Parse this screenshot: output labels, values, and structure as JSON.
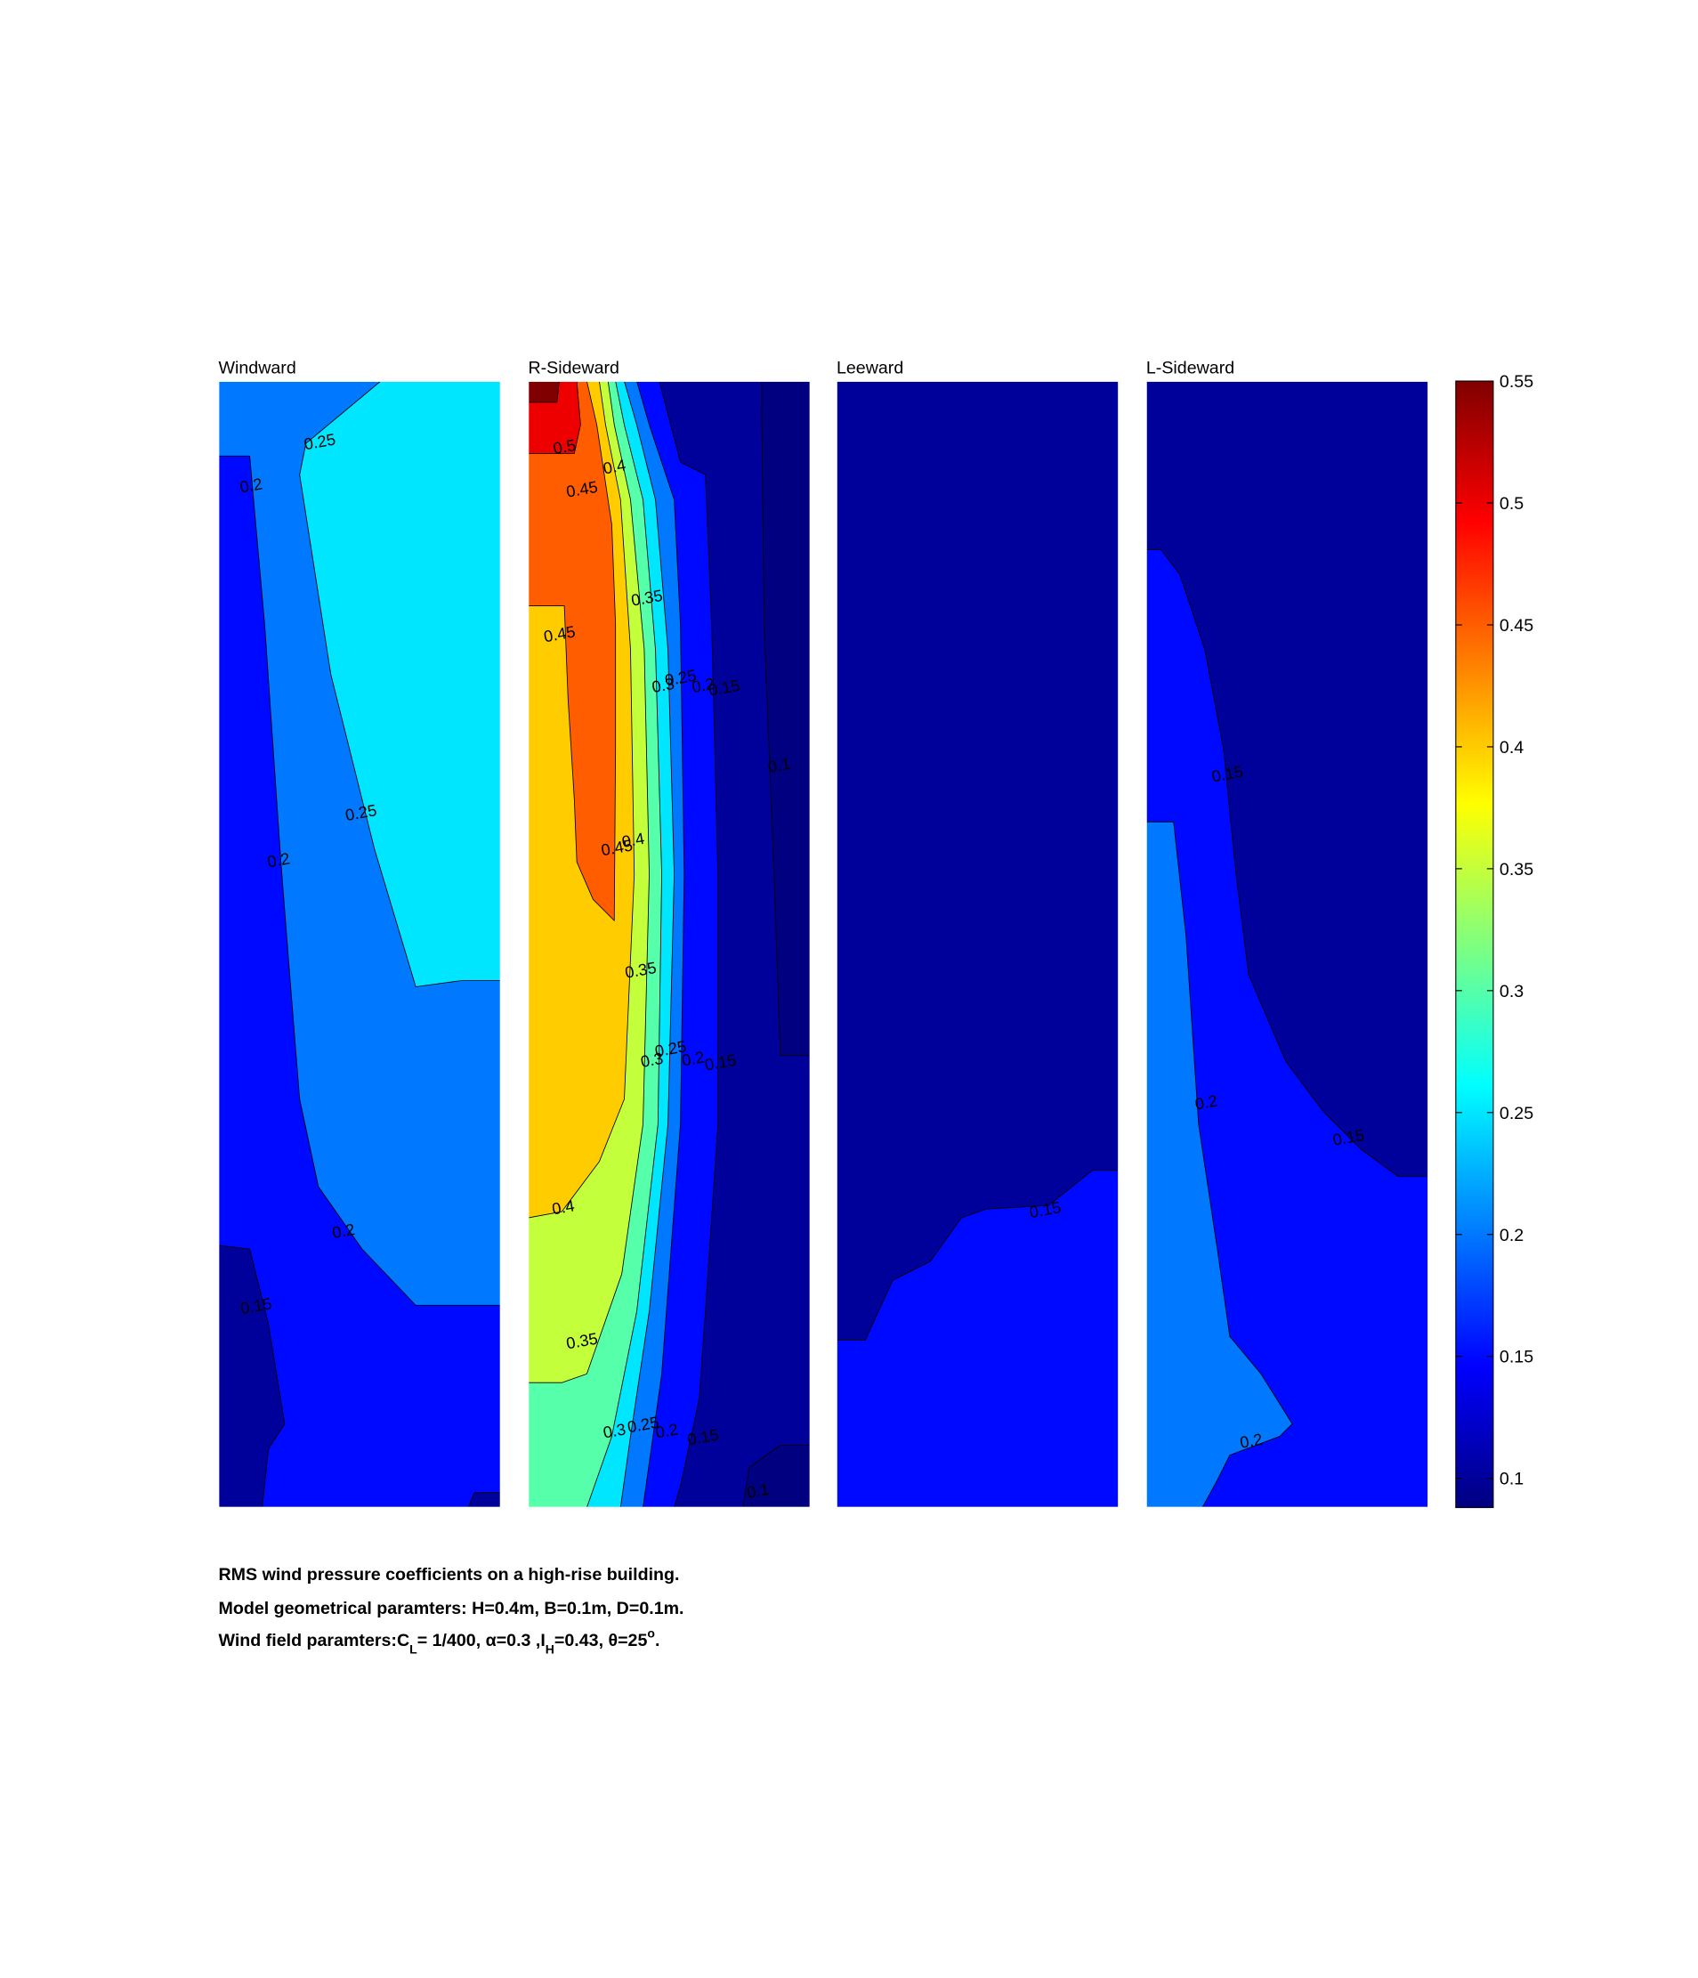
{
  "chart_data": [
    {
      "type": "contour",
      "title": "Windward",
      "levels": [
        0.15,
        0.2,
        0.25,
        0.1,
        0.1
      ],
      "contour_labels": [
        0.25,
        0.2,
        0.25,
        0.2,
        0.2,
        0.15
      ]
    },
    {
      "type": "contour",
      "title": "R-Sideward",
      "levels": [
        0.1,
        0.15,
        0.2,
        0.25,
        0.3,
        0.35,
        0.4,
        0.45,
        0.5,
        0.55
      ],
      "contour_labels": [
        0.5,
        0.4,
        0.45,
        0.35,
        0.45,
        0.3,
        0.25,
        0.2,
        0.15,
        0.1,
        0.45,
        0.4,
        0.35,
        0.3,
        0.25,
        0.2,
        0.15,
        0.4,
        0.35,
        0.3,
        0.25,
        0.2,
        0.15,
        0.1
      ]
    },
    {
      "type": "contour",
      "title": "Leeward",
      "levels": [
        0.1,
        0.15
      ],
      "contour_labels": [
        0.15
      ]
    },
    {
      "type": "contour",
      "title": "L-Sideward",
      "levels": [
        0.1,
        0.15,
        0.2
      ],
      "contour_labels": [
        0.15,
        0.2,
        0.15,
        0.2
      ]
    },
    {
      "type": "colorbar",
      "colormap": "jet",
      "ylim": [
        0.088,
        0.55
      ],
      "yticks": [
        0.1,
        0.15,
        0.2,
        0.25,
        0.3,
        0.35,
        0.4,
        0.45,
        0.5,
        0.55
      ]
    }
  ],
  "caption": [
    "RMS wind pressure coefficients on a high-rise building.",
    "Model geometrical paramters: H=0.4m, B=0.1m, D=0.1m.",
    [
      "Wind field paramters:C",
      "L",
      "= 1/400, α=0.3 ,I",
      "H",
      "=0.43, θ=25",
      "o",
      "."
    ]
  ]
}
